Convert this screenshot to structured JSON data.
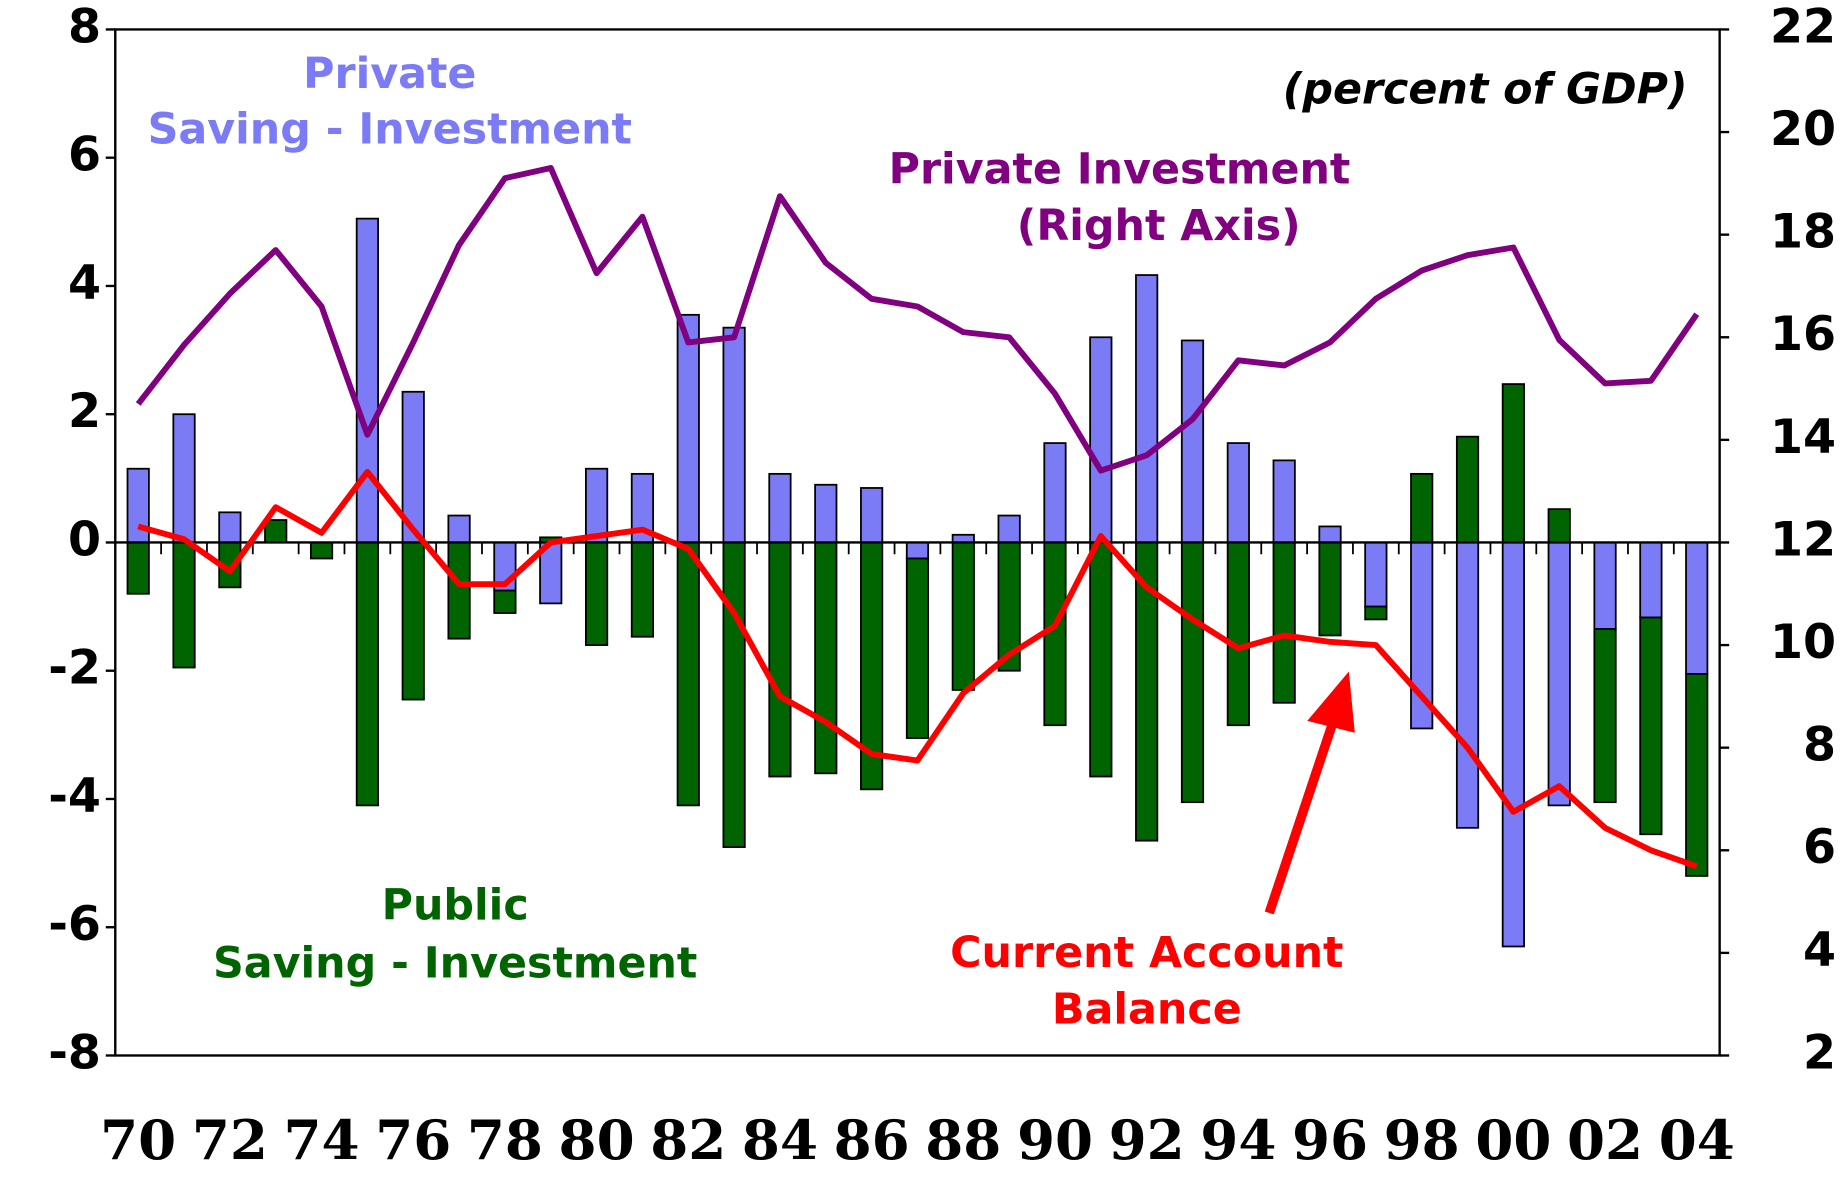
{
  "chart_data": {
    "type": "bar",
    "stacked": true,
    "units": "(percent of GDP)",
    "categories": [
      "70",
      null,
      "72",
      null,
      "74",
      null,
      "76",
      null,
      "78",
      null,
      "80",
      null,
      "82",
      null,
      "84",
      null,
      "86",
      null,
      "88",
      null,
      "90",
      null,
      "92",
      null,
      "94",
      null,
      "96",
      null,
      "98",
      null,
      "00",
      null,
      "02",
      null,
      "04"
    ],
    "ylim": [
      -8,
      8
    ],
    "yticks": [
      -8,
      -6,
      -4,
      -2,
      0,
      2,
      4,
      6,
      8
    ],
    "y2lim": [
      2,
      22
    ],
    "y2ticks": [
      2,
      4,
      6,
      8,
      10,
      12,
      14,
      16,
      18,
      20,
      22
    ],
    "grid": false,
    "series": [
      {
        "name": [
          "Private",
          "Saving - Investment"
        ],
        "type": "bar",
        "color": "#7b7bf5",
        "values": [
          1.15,
          2.0,
          0.47,
          0,
          0,
          5.05,
          2.35,
          0.42,
          -0.75,
          -0.95,
          1.15,
          1.07,
          3.55,
          3.35,
          1.07,
          0.9,
          0.85,
          -0.25,
          0.12,
          0.42,
          1.55,
          3.2,
          4.17,
          3.15,
          1.55,
          1.28,
          0.25,
          -1.0,
          -2.9,
          -4.45,
          -6.3,
          -4.1,
          -1.35,
          -1.17,
          -2.05
        ]
      },
      {
        "name": [
          "Public",
          "Saving - Investment"
        ],
        "type": "bar",
        "color": "#006400",
        "values": [
          -0.8,
          -1.95,
          -0.7,
          0.35,
          -0.25,
          -4.1,
          -2.45,
          -1.5,
          -0.35,
          0.08,
          -1.6,
          -1.47,
          -4.1,
          -4.75,
          -3.65,
          -3.6,
          -3.85,
          -2.8,
          -2.3,
          -2.0,
          -2.85,
          -3.65,
          -4.65,
          -4.05,
          -2.85,
          -2.5,
          -1.45,
          -0.2,
          1.07,
          1.65,
          2.47,
          0.52,
          -2.7,
          -3.38,
          -3.15
        ]
      },
      {
        "name": [
          "Current Account",
          "Balance"
        ],
        "type": "line",
        "color": "#ff0000",
        "values": [
          0.25,
          0.05,
          -0.45,
          0.55,
          0.15,
          1.1,
          0.2,
          -0.65,
          -0.65,
          0.0,
          0.1,
          0.2,
          -0.1,
          -1.1,
          -2.4,
          -2.8,
          -3.3,
          -3.4,
          -2.35,
          -1.75,
          -1.3,
          0.1,
          -0.7,
          -1.2,
          -1.65,
          -1.45,
          -1.55,
          -1.6,
          -2.4,
          -3.2,
          -4.2,
          -3.8,
          -4.45,
          -4.8,
          -5.05
        ]
      },
      {
        "name": [
          "Private Investment",
          "(Right Axis)"
        ],
        "type": "line",
        "axis": "y2",
        "color": "#800080",
        "values": [
          14.7,
          15.85,
          16.85,
          17.7,
          16.6,
          14.1,
          15.9,
          17.8,
          19.1,
          19.3,
          17.25,
          18.35,
          15.9,
          16.0,
          18.75,
          17.45,
          16.75,
          16.6,
          16.1,
          16.0,
          14.9,
          13.4,
          13.7,
          14.4,
          15.55,
          15.45,
          15.9,
          16.75,
          17.3,
          17.6,
          17.75,
          15.95,
          15.1,
          15.15,
          16.45
        ]
      }
    ]
  }
}
